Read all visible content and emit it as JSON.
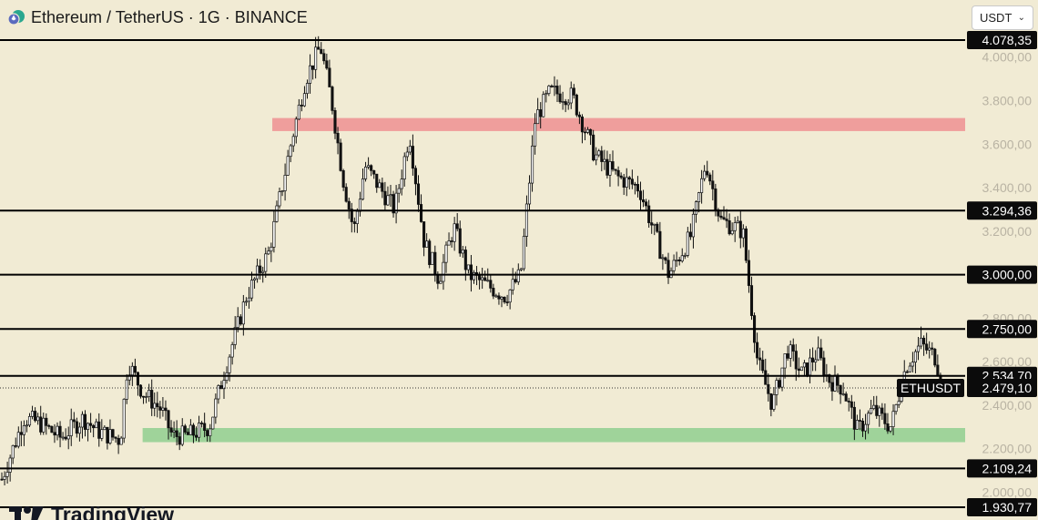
{
  "header": {
    "title": "Ethereum / TetherUS · 1G · BINANCE",
    "logo_icon": "ethereum-tether-logo-icon"
  },
  "currency_select": {
    "value": "USDT",
    "icon": "chevron-down-icon"
  },
  "watermark": {
    "text": "TradingView",
    "icon": "tradingview-logo-icon"
  },
  "colors": {
    "background": "#f1ebd4",
    "resistance_zone": "#ef9e9c",
    "support_zone": "#9fd39a",
    "candles": "#111111",
    "levels": "#000000"
  },
  "chart_data": {
    "type": "candlestick",
    "symbol_label": "ETHUSDT",
    "y_axis": {
      "min": 1900,
      "max": 4120,
      "side": "right"
    },
    "y_ticks": [
      "4.000,00",
      "3.800,00",
      "3.600,00",
      "3.400,00",
      "3.200,00",
      "2.800,00",
      "2.600,00",
      "2.400,00",
      "2.200,00",
      "2.000,00"
    ],
    "y_tick_values": [
      4000,
      3800,
      3600,
      3400,
      3200,
      2800,
      2600,
      2400,
      2200,
      2000
    ],
    "levels": [
      {
        "value": 4078.35,
        "label": "4.078,35"
      },
      {
        "value": 3294.36,
        "label": "3.294,36"
      },
      {
        "value": 3000.0,
        "label": "3.000,00"
      },
      {
        "value": 2750.0,
        "label": "2.750,00"
      },
      {
        "value": 2534.7,
        "label": "2.534,70"
      },
      {
        "value": 2109.24,
        "label": "2.109,24"
      },
      {
        "value": 1930.77,
        "label": "1.930,77"
      }
    ],
    "last_price": {
      "value": 2479.1,
      "label": "2.479,10"
    },
    "zones": [
      {
        "kind": "resistance",
        "low": 3660,
        "high": 3720,
        "x_start": 7.3,
        "x_end": 27.5
      },
      {
        "kind": "support",
        "low": 2230,
        "high": 2295,
        "x_start": 3.8,
        "x_end": 27.5
      }
    ],
    "x_range": [
      0,
      26
    ],
    "price_path": [
      [
        0.0,
        2060
      ],
      [
        0.6,
        2340
      ],
      [
        1.0,
        2320
      ],
      [
        1.6,
        2250
      ],
      [
        2.2,
        2340
      ],
      [
        2.6,
        2280
      ],
      [
        3.2,
        2240
      ],
      [
        3.4,
        2600
      ],
      [
        3.8,
        2460
      ],
      [
        4.3,
        2380
      ],
      [
        4.6,
        2260
      ],
      [
        5.0,
        2260
      ],
      [
        5.6,
        2300
      ],
      [
        6.0,
        2550
      ],
      [
        6.6,
        2900
      ],
      [
        7.2,
        3100
      ],
      [
        7.8,
        3600
      ],
      [
        8.2,
        3900
      ],
      [
        8.6,
        4050
      ],
      [
        8.9,
        3800
      ],
      [
        9.2,
        3450
      ],
      [
        9.5,
        3200
      ],
      [
        9.8,
        3500
      ],
      [
        10.2,
        3400
      ],
      [
        10.6,
        3300
      ],
      [
        11.0,
        3650
      ],
      [
        11.4,
        3150
      ],
      [
        11.8,
        2980
      ],
      [
        12.2,
        3220
      ],
      [
        12.6,
        3000
      ],
      [
        13.0,
        2960
      ],
      [
        13.6,
        2900
      ],
      [
        14.0,
        3000
      ],
      [
        14.4,
        3720
      ],
      [
        14.8,
        3840
      ],
      [
        15.4,
        3820
      ],
      [
        16.0,
        3550
      ],
      [
        16.6,
        3450
      ],
      [
        17.2,
        3400
      ],
      [
        17.6,
        3200
      ],
      [
        18.0,
        3000
      ],
      [
        18.6,
        3180
      ],
      [
        19.0,
        3520
      ],
      [
        19.4,
        3250
      ],
      [
        20.0,
        3200
      ],
      [
        20.4,
        2600
      ],
      [
        20.8,
        2400
      ],
      [
        21.2,
        2660
      ],
      [
        21.6,
        2540
      ],
      [
        22.0,
        2640
      ],
      [
        22.3,
        2520
      ],
      [
        22.7,
        2480
      ],
      [
        23.1,
        2280
      ],
      [
        23.5,
        2380
      ],
      [
        24.0,
        2300
      ],
      [
        24.4,
        2580
      ],
      [
        24.8,
        2680
      ],
      [
        25.2,
        2620
      ],
      [
        25.4,
        2479
      ]
    ]
  }
}
